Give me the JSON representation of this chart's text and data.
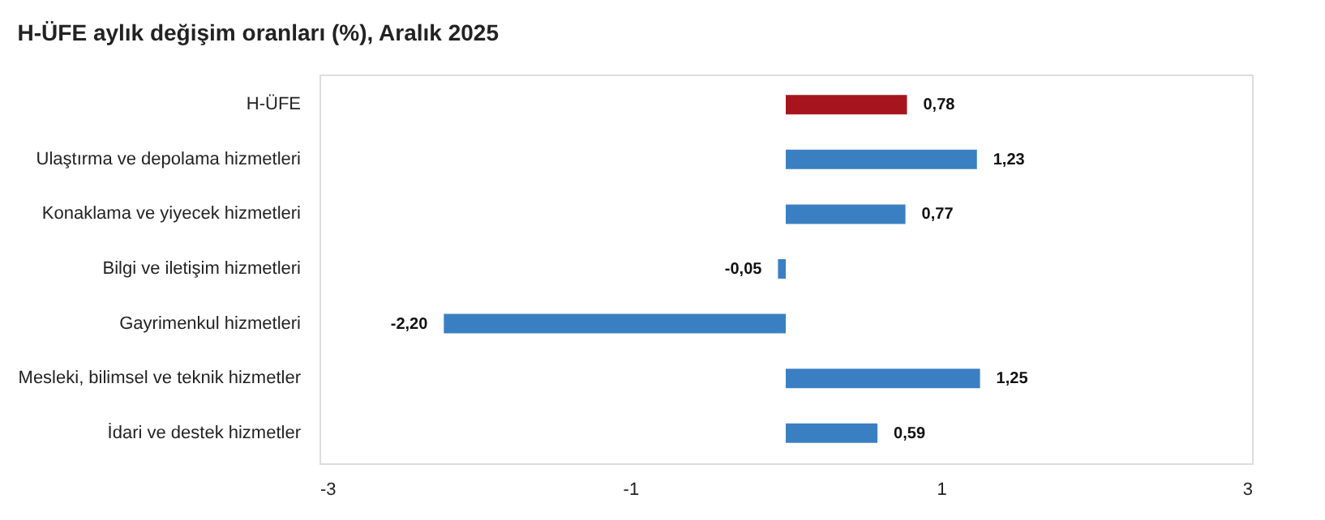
{
  "chart_data": {
    "type": "bar",
    "orientation": "horizontal",
    "title": "H-ÜFE aylık değişim oranları (%), Aralık 2025",
    "categories": [
      "H-ÜFE",
      "Ulaştırma ve depolama hizmetleri",
      "Konaklama ve yiyecek hizmetleri",
      "Bilgi ve iletişim hizmetleri",
      "Gayrimenkul hizmetleri",
      "Mesleki, bilimsel ve teknik hizmetler",
      "İdari ve destek hizmetler"
    ],
    "values": [
      0.78,
      1.23,
      0.77,
      -0.05,
      -2.2,
      1.25,
      0.59
    ],
    "colors": [
      "#a6151d",
      "#3a7fc1",
      "#3a7fc1",
      "#3a7fc1",
      "#3a7fc1",
      "#3a7fc1",
      "#3a7fc1"
    ],
    "value_labels": [
      "0,78",
      "1,23",
      "0,77",
      "-0,05",
      "-2,20",
      "1,25",
      "0,59"
    ],
    "xlim": [
      -3,
      3
    ],
    "xticks": [
      -3,
      -1,
      1,
      3
    ],
    "grid": false
  }
}
